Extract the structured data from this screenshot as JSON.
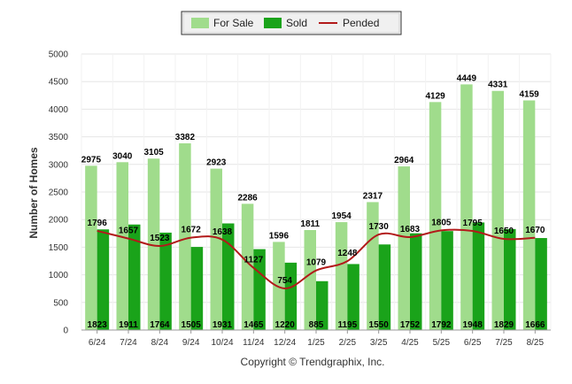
{
  "chart_data": {
    "type": "bar",
    "categories": [
      "6/24",
      "7/24",
      "8/24",
      "9/24",
      "10/24",
      "11/24",
      "12/24",
      "1/25",
      "2/25",
      "3/25",
      "4/25",
      "5/25",
      "6/25",
      "7/25",
      "8/25"
    ],
    "series": [
      {
        "name": "For Sale",
        "type": "bar",
        "color": "#a0dc8c",
        "values": [
          2975,
          3040,
          3105,
          3382,
          2923,
          2286,
          1596,
          1811,
          1954,
          2317,
          2964,
          4129,
          4449,
          4331,
          4159
        ]
      },
      {
        "name": "Sold",
        "type": "bar",
        "color": "#1aa31a",
        "values": [
          1823,
          1911,
          1764,
          1505,
          1931,
          1465,
          1220,
          885,
          1195,
          1550,
          1752,
          1792,
          1948,
          1829,
          1666
        ]
      },
      {
        "name": "Pended",
        "type": "line",
        "color": "#b21a1a",
        "values": [
          1796,
          1657,
          1523,
          1672,
          1638,
          1127,
          754,
          1079,
          1248,
          1730,
          1683,
          1805,
          1795,
          1650,
          1670
        ]
      }
    ],
    "title": "",
    "xlabel": "",
    "ylabel": "Number of Homes",
    "ylim": [
      0,
      5000
    ],
    "yticks": [
      0,
      500,
      1000,
      1500,
      2000,
      2500,
      3000,
      3500,
      4000,
      4500,
      5000
    ],
    "grid": true,
    "legend": "top-center"
  },
  "credit": "Copyright © Trendgraphix, Inc."
}
